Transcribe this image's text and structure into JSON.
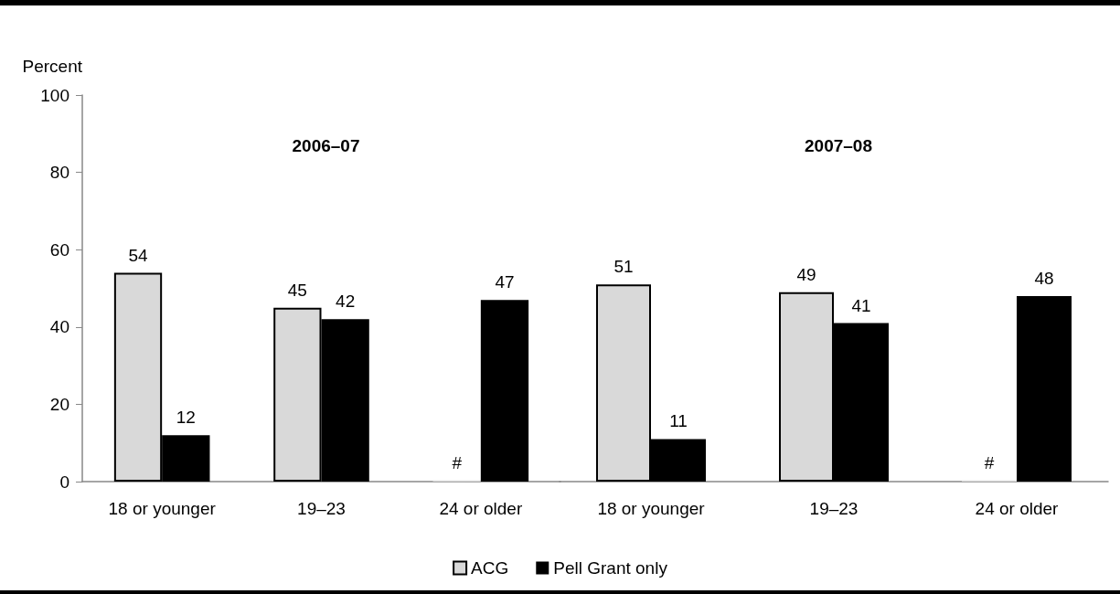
{
  "chart_data": [
    {
      "type": "bar",
      "title": "2006–07",
      "ylabel": "Percent",
      "categories": [
        "18 or younger",
        "19–23",
        "24 or older"
      ],
      "series": [
        {
          "color": "#d9d9d9",
          "values": [
            54,
            45,
            0.3
          ],
          "value_labels": [
            "54",
            "45",
            "#"
          ]
        },
        {
          "color": "#000000",
          "values": [
            12,
            42,
            47
          ],
          "value_labels": [
            "12",
            "42",
            "47"
          ]
        }
      ],
      "ylim": [
        0,
        100
      ],
      "yticks": [
        0,
        20,
        40,
        60,
        80,
        100
      ],
      "grid": false,
      "legend": false
    },
    {
      "type": "bar",
      "title": "2007–08",
      "categories": [
        "18 or younger",
        "19–23",
        "24 or older"
      ],
      "series": [
        {
          "name": "ACG",
          "color": "#d9d9d9",
          "values": [
            51,
            49,
            0.3
          ],
          "value_labels": [
            "51",
            "49",
            "#"
          ]
        },
        {
          "name": "Pell Grant only",
          "color": "#000000",
          "values": [
            11,
            41,
            48
          ],
          "value_labels": [
            "11",
            "41",
            "48"
          ]
        }
      ],
      "ylim": [
        0,
        100
      ],
      "yticks": [
        0,
        20,
        40,
        60,
        80,
        100
      ],
      "grid": false,
      "legend": "bottom",
      "tick_labels": "x"
    }
  ]
}
